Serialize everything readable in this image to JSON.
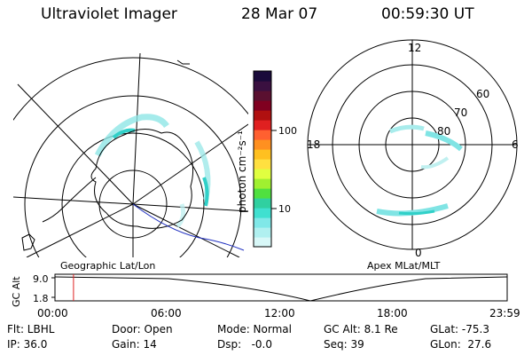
{
  "header": {
    "instrument": "Ultraviolet Imager",
    "date": "28 Mar 07",
    "time": "00:59:30 UT"
  },
  "left_map": {
    "caption": "Geographic Lat/Lon"
  },
  "right_map": {
    "caption": "Apex MLat/MLT",
    "mlt_labels": {
      "top": "12",
      "right": "6",
      "bottom": "0",
      "left": "18"
    },
    "lat_labels": [
      "60",
      "70",
      "80"
    ]
  },
  "colorbar": {
    "unit_label": "photon cm⁻²s⁻¹",
    "ticks": [
      "100",
      "10"
    ],
    "colors": [
      "#1a0a3a",
      "#3a1040",
      "#5a1030",
      "#800020",
      "#b01010",
      "#e02020",
      "#ff6030",
      "#ff9020",
      "#ffc020",
      "#ffe040",
      "#e0ff40",
      "#a0f030",
      "#50e040",
      "#30d0a0",
      "#40e0d0",
      "#80e8e8",
      "#b0f0f0",
      "#d8f8f8"
    ]
  },
  "timeline": {
    "axis_label": "GC Alt",
    "y_ticks": [
      "9.0",
      "1.8"
    ],
    "x_ticks": [
      "00:00",
      "06:00",
      "12:00",
      "18:00",
      "23:59"
    ],
    "cursor_time_fraction": 0.041
  },
  "info": {
    "row1": {
      "filter": "Flt: LBHL",
      "door": "Door: Open",
      "mode": "Mode: Normal",
      "gc_alt": "GC Alt: 8.1 Re",
      "glat": "GLat: -75.3"
    },
    "row2": {
      "ip": "IP: 36.0",
      "gain": "Gain: 14",
      "dsp": "Dsp:   -0.0",
      "seq": "Seq: 39",
      "glon": "GLon:  27.6"
    }
  }
}
